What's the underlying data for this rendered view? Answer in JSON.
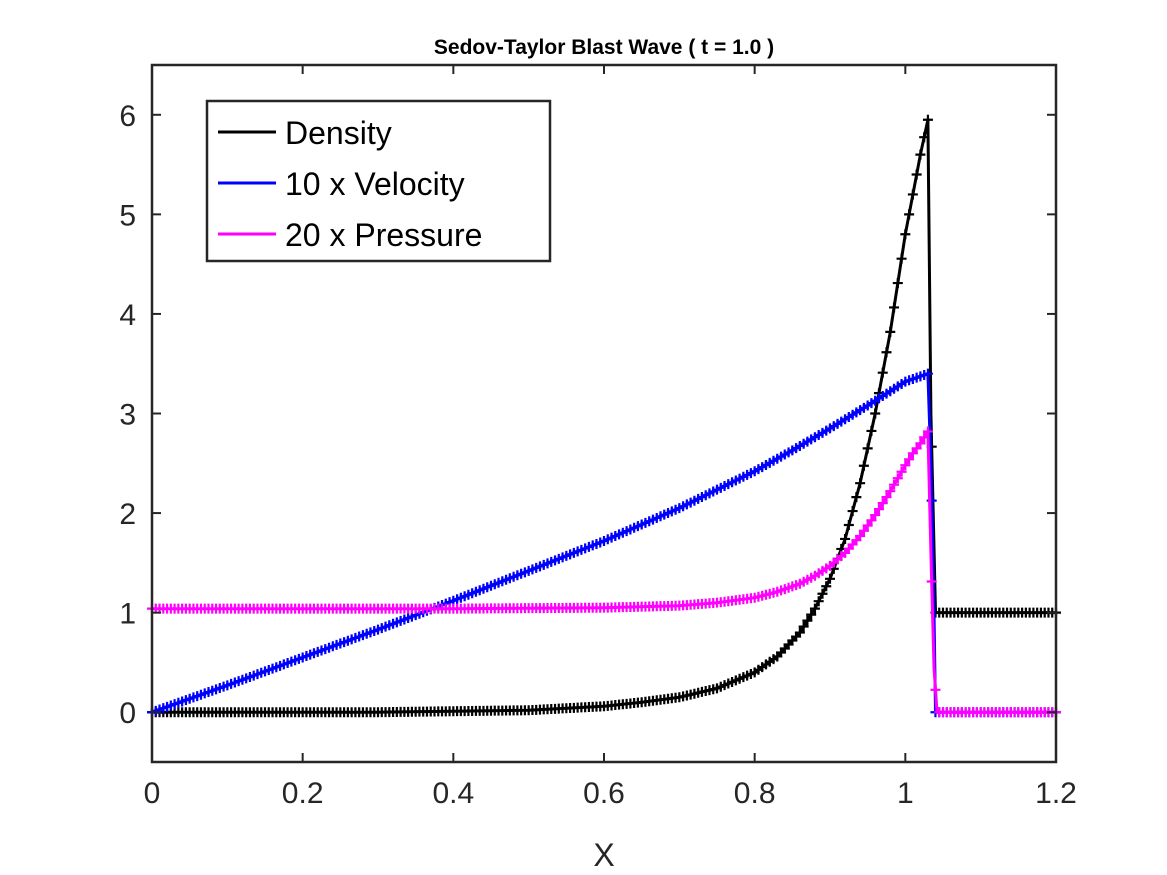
{
  "chart_data": {
    "type": "line",
    "title": "Sedov-Taylor Blast Wave ( t = 1.0 )",
    "xlabel": "X",
    "ylabel": "",
    "xlim": [
      0,
      1.2
    ],
    "ylim": [
      -0.5,
      6.5
    ],
    "xticks": [
      "0",
      "0.2",
      "0.4",
      "0.6",
      "0.8",
      "1",
      "1.2"
    ],
    "yticks": [
      "0",
      "1",
      "2",
      "3",
      "4",
      "5",
      "6"
    ],
    "xtick_values": [
      0,
      0.2,
      0.4,
      0.6,
      0.8,
      1.0,
      1.2
    ],
    "ytick_values": [
      0,
      1,
      2,
      3,
      4,
      5,
      6
    ],
    "grid": false,
    "legend_position": "top-left",
    "series": [
      {
        "name": "Density",
        "color": "#000000",
        "x": [
          0,
          0.1,
          0.2,
          0.3,
          0.4,
          0.5,
          0.55,
          0.6,
          0.65,
          0.7,
          0.75,
          0.8,
          0.83,
          0.86,
          0.88,
          0.9,
          0.92,
          0.94,
          0.96,
          0.98,
          1.0,
          1.01,
          1.02,
          1.03,
          1.034,
          1.04,
          1.2
        ],
        "y": [
          0,
          0,
          0,
          0,
          0.01,
          0.02,
          0.04,
          0.06,
          0.1,
          0.15,
          0.24,
          0.4,
          0.56,
          0.8,
          1.04,
          1.34,
          1.74,
          2.3,
          3.0,
          3.82,
          4.8,
          5.2,
          5.6,
          5.95,
          3.0,
          1.0,
          1.0
        ]
      },
      {
        "name": "10 x Velocity",
        "color": "#0000ff",
        "x": [
          0,
          0.1,
          0.2,
          0.3,
          0.4,
          0.5,
          0.6,
          0.7,
          0.8,
          0.85,
          0.9,
          0.95,
          1.0,
          1.03,
          1.034,
          1.038,
          1.04,
          1.2
        ],
        "y": [
          0,
          0.27,
          0.55,
          0.83,
          1.12,
          1.42,
          1.72,
          2.05,
          2.42,
          2.63,
          2.85,
          3.08,
          3.32,
          3.4,
          2.5,
          1.0,
          0,
          0
        ]
      },
      {
        "name": "20 x Pressure",
        "color": "#ff00ff",
        "x": [
          0,
          0.2,
          0.4,
          0.6,
          0.7,
          0.75,
          0.8,
          0.83,
          0.86,
          0.88,
          0.9,
          0.92,
          0.94,
          0.96,
          0.98,
          1.0,
          1.01,
          1.02,
          1.03,
          1.034,
          1.038,
          1.042,
          1.2
        ],
        "y": [
          1.04,
          1.04,
          1.04,
          1.05,
          1.07,
          1.1,
          1.15,
          1.21,
          1.29,
          1.37,
          1.47,
          1.6,
          1.77,
          1.98,
          2.22,
          2.48,
          2.6,
          2.7,
          2.82,
          1.6,
          0.45,
          0,
          0
        ]
      }
    ]
  }
}
